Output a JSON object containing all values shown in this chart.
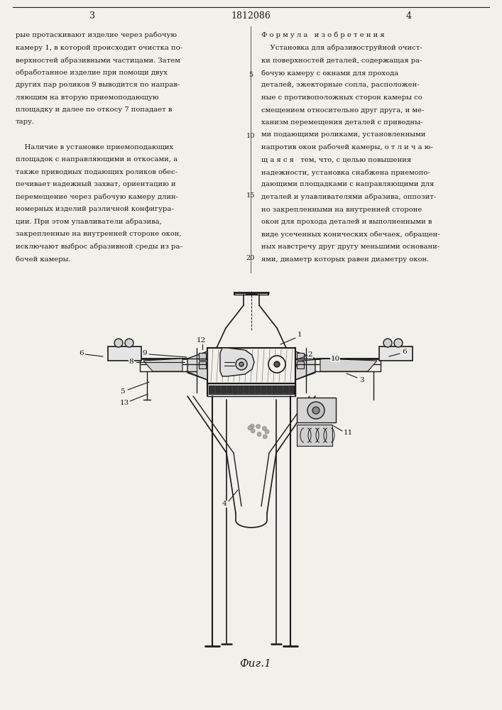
{
  "title": "1812086",
  "page_left": "3",
  "page_right": "4",
  "fig_label": "Фиг.1",
  "bg_color": "#f2f0eb",
  "line_color": "#1a1a1a",
  "text_color": "#1a1a1a",
  "left_col_text": "рые протаскивают изделие через рабочую\nкамеру 1, в которой происходит очистка по-\nверхностей абразивными частицами. Затем\nобработанное изделие при помощи двух\nдругих пар роликов 9 выводится по направ-\nляющим на вторую приемоподающую\nплощадку и далее по откосу 7 попадает в\nтару.\n\n    Наличие в установке приемоподающих\nплощадок с направляющими и откосами, а\nтакже приводных подающих роликов обес-\nпечивает надежный захват, ориентацию и\nперемещение через рабочую камеру длин-\nномерных изделий различной конфигура-\nции. При этом улавливатели абразива,\nзакрепленные на внутренней стороне окон,\nисключают выброс абразивной среды из ра-\nбочей камеры.",
  "right_col_text_title": "Ф о р м у л а   и з о б р е т е н и я",
  "right_col_text": "    Установка для абразивоструйной очист-\nки поверхностей деталей, содержащая ра-\nбочую камеру с окнами для прохода\nдеталей, эжекторные сопла, расположен-\nные с противоположных сторон камеры со\nсмещением относительно друг друга, и ме-\nханизм перемещения деталей с приводны-\nми подающими роликами, установленными\nнапротив окон рабочей камеры, о т л и ч а ю-\nщ а я с я   тем, что, с целью повышения\nнадежности, установка снабжена приемопо-\nдающими площадками с направляющими для\nдеталей и улавливателями абразива, оппозит-\nно закрепленными на внутренней стороне\nокон для прохода деталей и выполненными в\nвиде усеченных конических обечаек, обращен-\nных навстречу друг другу меньшими основани-\nями, диаметр которых равен диаметру окон."
}
